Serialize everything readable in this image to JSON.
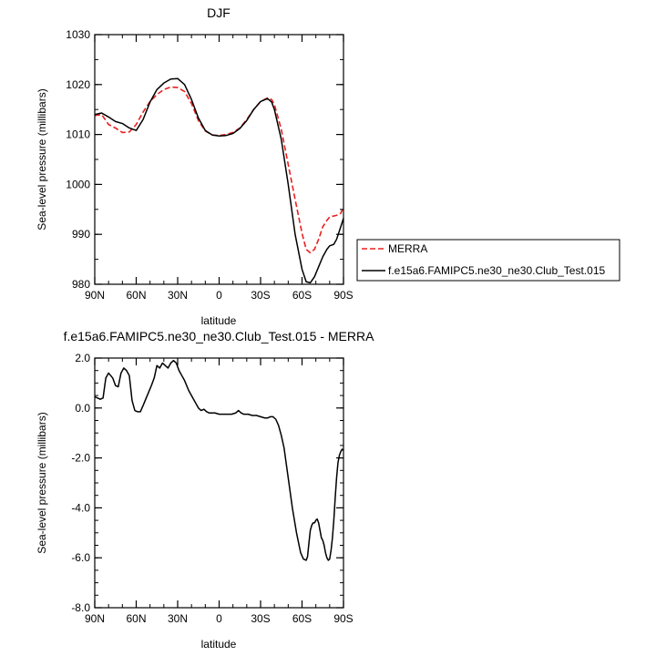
{
  "chart_data": [
    {
      "type": "line",
      "title": "DJF",
      "xlabel": "latitude",
      "ylabel": "Sea-level pressure (millibars)",
      "xlim": [
        90,
        -90
      ],
      "ylim": [
        980,
        1030
      ],
      "x_ticks": [
        90,
        60,
        30,
        0,
        -30,
        -60,
        -90
      ],
      "x_tick_labels": [
        "90N",
        "60N",
        "30N",
        "0",
        "30S",
        "60S",
        "90S"
      ],
      "y_ticks": [
        980,
        990,
        1000,
        1010,
        1020,
        1030
      ],
      "y_tick_labels": [
        "980",
        "990",
        "1000",
        "1010",
        "1020",
        "1030"
      ],
      "legend": {
        "placement": "right"
      },
      "series": [
        {
          "name": "MERRA",
          "color": "#e8201e",
          "dash": "dashed",
          "x": [
            90,
            85,
            80,
            75,
            70,
            65,
            60,
            55,
            50,
            45,
            40,
            35,
            30,
            25,
            20,
            15,
            10,
            5,
            0,
            -5,
            -10,
            -15,
            -20,
            -25,
            -30,
            -35,
            -38,
            -40,
            -45,
            -50,
            -55,
            -60,
            -63,
            -66,
            -69,
            -72,
            -75,
            -78,
            -80,
            -85,
            -88,
            -90
          ],
          "y": [
            1013.8,
            1014.0,
            1012.0,
            1011.3,
            1010.4,
            1010.5,
            1012.0,
            1014.5,
            1016.6,
            1018.0,
            1019.0,
            1019.5,
            1019.4,
            1018.6,
            1016.2,
            1012.8,
            1010.7,
            1009.9,
            1009.8,
            1010.0,
            1010.4,
            1011.3,
            1013.0,
            1015.0,
            1016.6,
            1017.3,
            1017.0,
            1016.0,
            1011.0,
            1004.0,
            997.0,
            990.2,
            987.0,
            986.3,
            987.0,
            989.0,
            991.5,
            992.8,
            993.5,
            993.8,
            994.2,
            995.5
          ]
        },
        {
          "name": "f.e15a6.FAMIPC5.ne30_ne30.Club_Test.015",
          "color": "#000000",
          "dash": "solid",
          "x": [
            90,
            85,
            80,
            75,
            70,
            65,
            60,
            55,
            50,
            45,
            40,
            35,
            30,
            25,
            20,
            15,
            10,
            5,
            0,
            -5,
            -10,
            -15,
            -20,
            -25,
            -30,
            -35,
            -38,
            -40,
            -45,
            -50,
            -55,
            -60,
            -63,
            -66,
            -69,
            -72,
            -75,
            -78,
            -80,
            -83,
            -85,
            -88,
            -90
          ],
          "y": [
            1014.0,
            1014.3,
            1013.5,
            1012.6,
            1012.2,
            1011.3,
            1010.8,
            1013.0,
            1016.5,
            1019.0,
            1020.3,
            1021.1,
            1021.2,
            1020.0,
            1017.0,
            1013.3,
            1010.8,
            1009.9,
            1009.7,
            1009.8,
            1010.2,
            1011.2,
            1012.8,
            1015.0,
            1016.6,
            1017.2,
            1016.5,
            1015.0,
            1009.0,
            1000.0,
            990.0,
            983.0,
            980.5,
            980.3,
            981.5,
            983.5,
            985.5,
            987.0,
            987.7,
            988.0,
            989.0,
            991.5,
            993.2
          ]
        }
      ]
    },
    {
      "type": "line",
      "title": "f.e15a6.FAMIPC5.ne30_ne30.Club_Test.015 - MERRA",
      "xlabel": "latitude",
      "ylabel": "Sea-level pressure (millibars)",
      "xlim": [
        90,
        -90
      ],
      "ylim": [
        -8.0,
        2.0
      ],
      "x_ticks": [
        90,
        60,
        30,
        0,
        -30,
        -60,
        -90
      ],
      "x_tick_labels": [
        "90N",
        "60N",
        "30N",
        "0",
        "30S",
        "60S",
        "90S"
      ],
      "y_ticks": [
        -8.0,
        -6.0,
        -4.0,
        -2.0,
        0.0,
        2.0
      ],
      "y_tick_labels": [
        "-8.0",
        "-6.0",
        "-4.0",
        "-2.0",
        "0.0",
        "2.0"
      ],
      "series": [
        {
          "color": "#000000",
          "dash": "solid",
          "x": [
            90,
            86,
            84,
            82,
            80,
            77,
            75,
            73,
            71,
            69,
            67,
            65,
            63,
            61,
            59,
            57,
            55,
            52,
            49,
            47,
            45,
            43,
            41,
            39,
            37,
            35,
            33,
            31,
            29,
            27,
            25,
            22,
            19,
            17,
            15,
            13,
            11,
            9,
            7,
            5,
            3,
            0,
            -3,
            -6,
            -9,
            -12,
            -14,
            -15,
            -16,
            -18,
            -21,
            -24,
            -27,
            -30,
            -33,
            -35,
            -37,
            -39,
            -41,
            -43,
            -45,
            -47,
            -50,
            -53,
            -56,
            -59,
            -61,
            -63,
            -64,
            -65,
            -66,
            -67,
            -68,
            -69,
            -70,
            -71,
            -72,
            -73,
            -74,
            -75,
            -76,
            -77,
            -78,
            -79,
            -80,
            -81,
            -82,
            -83,
            -84,
            -85,
            -86,
            -87,
            -88,
            -89,
            -90
          ],
          "y": [
            0.45,
            0.35,
            0.4,
            1.2,
            1.4,
            1.2,
            0.9,
            0.85,
            1.4,
            1.6,
            1.5,
            1.3,
            0.3,
            -0.1,
            -0.15,
            -0.15,
            0.1,
            0.5,
            0.9,
            1.2,
            1.7,
            1.6,
            1.8,
            1.7,
            1.6,
            1.8,
            1.9,
            1.8,
            1.5,
            1.3,
            1.1,
            0.7,
            0.4,
            0.2,
            0.0,
            -0.1,
            -0.05,
            -0.15,
            -0.2,
            -0.2,
            -0.2,
            -0.25,
            -0.25,
            -0.25,
            -0.25,
            -0.2,
            -0.1,
            -0.15,
            -0.2,
            -0.25,
            -0.25,
            -0.3,
            -0.3,
            -0.35,
            -0.4,
            -0.4,
            -0.35,
            -0.35,
            -0.45,
            -0.7,
            -1.1,
            -1.6,
            -2.8,
            -4.0,
            -5.0,
            -5.8,
            -6.05,
            -6.1,
            -5.95,
            -5.4,
            -4.9,
            -4.7,
            -4.6,
            -4.6,
            -4.5,
            -4.45,
            -4.6,
            -4.9,
            -5.2,
            -5.3,
            -5.5,
            -5.8,
            -6.0,
            -6.1,
            -6.05,
            -5.7,
            -5.2,
            -4.5,
            -3.6,
            -2.8,
            -2.2,
            -1.9,
            -1.75,
            -1.65,
            -1.7
          ]
        }
      ]
    }
  ]
}
